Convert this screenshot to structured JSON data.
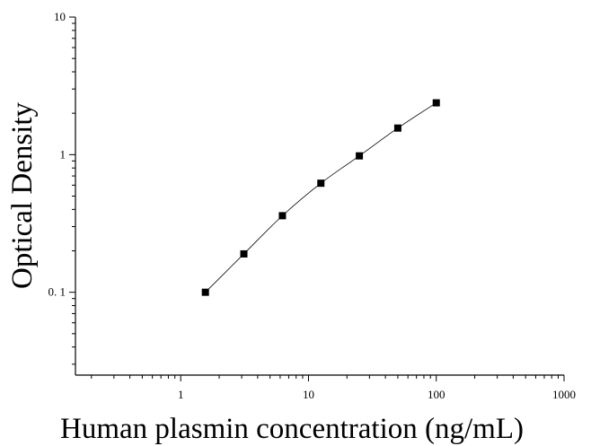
{
  "chart_data": {
    "type": "scatter",
    "xlabel": "Human plasmin concentration (ng/mL)",
    "ylabel": "Optical Density",
    "xscale": "log",
    "yscale": "log",
    "xlim": [
      0.15,
      1000
    ],
    "ylim": [
      0.025,
      10
    ],
    "xticks": [
      {
        "value": 1,
        "label": "1"
      },
      {
        "value": 10,
        "label": "10"
      },
      {
        "value": 100,
        "label": "100"
      },
      {
        "value": 1000,
        "label": "1000"
      }
    ],
    "yticks": [
      {
        "value": 0.1,
        "label": "0. 1"
      },
      {
        "value": 1,
        "label": "1"
      },
      {
        "value": 10,
        "label": "10"
      }
    ],
    "grid": false,
    "legend": "none",
    "series": [
      {
        "marker": "square",
        "color": "#000000",
        "fit_curve": true,
        "x": [
          1.56,
          3.12,
          6.25,
          12.5,
          25,
          50,
          100
        ],
        "y": [
          0.1,
          0.19,
          0.36,
          0.62,
          0.98,
          1.56,
          2.38
        ]
      }
    ]
  }
}
